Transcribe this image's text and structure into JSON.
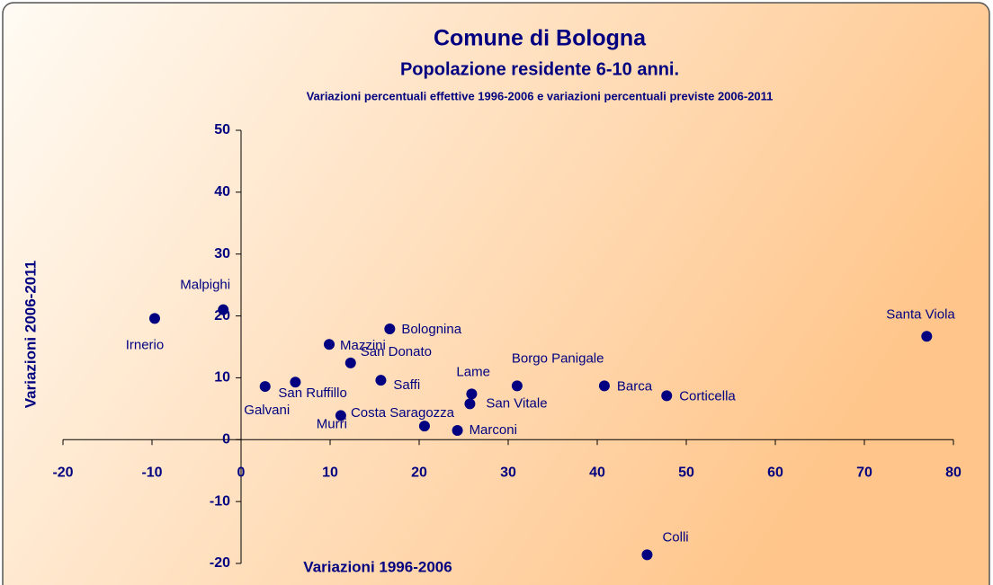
{
  "chart_data": {
    "type": "scatter",
    "title": "Comune di Bologna",
    "subtitle": "Popolazione residente 6-10 anni.",
    "subtitle2": "Variazioni percentuali effettive 1996-2006 e variazioni percentuali previste 2006-2011",
    "x_label": "Variazioni 1996-2006",
    "y_label": "Variazioni 2006-2011",
    "color": "#000080",
    "xlim": [
      -20,
      80
    ],
    "xticks": [
      -20,
      -10,
      0,
      10,
      20,
      30,
      40,
      50,
      60,
      70,
      80
    ],
    "ylim": [
      -20,
      50
    ],
    "yticks": [
      -20,
      -10,
      0,
      10,
      20,
      30,
      40,
      50
    ],
    "grid": false,
    "points": [
      {
        "name": "Irnerio",
        "x": -9.7,
        "y": 19.6
      },
      {
        "name": "Malpighi",
        "x": -2.0,
        "y": 21.0
      },
      {
        "name": "Galvani",
        "x": 2.7,
        "y": 8.6
      },
      {
        "name": "San Ruffillo",
        "x": 6.1,
        "y": 9.3
      },
      {
        "name": "Mazzini",
        "x": 9.9,
        "y": 15.4
      },
      {
        "name": "San Donato",
        "x": 12.3,
        "y": 12.4
      },
      {
        "name": "Murri",
        "x": 11.2,
        "y": 3.9
      },
      {
        "name": "Saffi",
        "x": 15.7,
        "y": 9.6
      },
      {
        "name": "Bolognina",
        "x": 16.7,
        "y": 17.9
      },
      {
        "name": "Costa Saragozza",
        "x": 20.6,
        "y": 2.2
      },
      {
        "name": "Marconi",
        "x": 24.3,
        "y": 1.5
      },
      {
        "name": "Lame",
        "x": 25.9,
        "y": 7.4
      },
      {
        "name": "San Vitale",
        "x": 25.7,
        "y": 5.8
      },
      {
        "name": "Borgo Panigale",
        "x": 31.0,
        "y": 8.7
      },
      {
        "name": "Barca",
        "x": 40.8,
        "y": 8.7
      },
      {
        "name": "Corticella",
        "x": 47.8,
        "y": 7.1
      },
      {
        "name": "Colli",
        "x": 45.6,
        "y": -18.6
      },
      {
        "name": "Santa Viola",
        "x": 77.0,
        "y": 16.7
      }
    ]
  }
}
